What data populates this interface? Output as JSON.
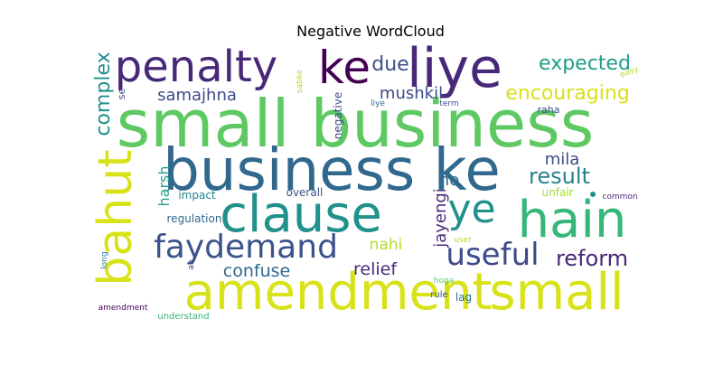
{
  "chart_data": {
    "type": "wordcloud",
    "title": "Negative WordCloud",
    "colormap": "viridis",
    "background": "#ffffff",
    "words": [
      {
        "text": "small business",
        "weight": 1.0,
        "color": "#5ec962"
      },
      {
        "text": "business ke",
        "weight": 0.88,
        "color": "#31688e"
      },
      {
        "text": "clause",
        "weight": 0.8,
        "color": "#21918c"
      },
      {
        "text": "amendment",
        "weight": 0.78,
        "color": "#d8e219"
      },
      {
        "text": "liye",
        "weight": 0.74,
        "color": "#482878"
      },
      {
        "text": "small",
        "weight": 0.72,
        "color": "#d8e219"
      },
      {
        "text": "hain",
        "weight": 0.72,
        "color": "#35b779"
      },
      {
        "text": "penalty",
        "weight": 0.64,
        "color": "#482878"
      },
      {
        "text": "ke",
        "weight": 0.64,
        "color": "#440154"
      },
      {
        "text": "bahut",
        "weight": 0.62,
        "color": "#d8e219"
      },
      {
        "text": "ye",
        "weight": 0.6,
        "color": "#21918c"
      },
      {
        "text": "faydemand",
        "weight": 0.5,
        "color": "#3b528b"
      },
      {
        "text": "useful",
        "weight": 0.46,
        "color": "#3e4a89"
      },
      {
        "text": "result",
        "weight": 0.34,
        "color": "#26828e"
      },
      {
        "text": "reform",
        "weight": 0.34,
        "color": "#482878"
      },
      {
        "text": "expected",
        "weight": 0.32,
        "color": "#1f9e89"
      },
      {
        "text": "encouraging",
        "weight": 0.3,
        "color": "#d8e219"
      },
      {
        "text": "complex",
        "weight": 0.3,
        "color": "#21918c"
      },
      {
        "text": "due",
        "weight": 0.28,
        "color": "#3b528b"
      },
      {
        "text": "confuse",
        "weight": 0.27,
        "color": "#31688e"
      },
      {
        "text": "relief",
        "weight": 0.26,
        "color": "#482878"
      },
      {
        "text": "samajhna",
        "weight": 0.25,
        "color": "#3e4a89"
      },
      {
        "text": "mushkil",
        "weight": 0.24,
        "color": "#3e4a89"
      },
      {
        "text": "jayengi",
        "weight": 0.24,
        "color": "#472d7b"
      },
      {
        "text": "ho",
        "weight": 0.24,
        "color": "#31688e"
      },
      {
        "text": "mila",
        "weight": 0.22,
        "color": "#3e4a89"
      },
      {
        "text": "nahi",
        "weight": 0.22,
        "color": "#b5de2b"
      },
      {
        "text": "harsh",
        "weight": 0.2,
        "color": "#1f9e89"
      },
      {
        "text": "impact",
        "weight": 0.16,
        "color": "#26828e"
      },
      {
        "text": "overall",
        "weight": 0.16,
        "color": "#3b528b"
      },
      {
        "text": "regulation",
        "weight": 0.16,
        "color": "#31688e"
      },
      {
        "text": "unfair",
        "weight": 0.16,
        "color": "#a6db35"
      },
      {
        "text": "raha",
        "weight": 0.14,
        "color": "#3e4a89"
      },
      {
        "text": "negative",
        "weight": 0.14,
        "color": "#3e4a89"
      },
      {
        "text": "se",
        "weight": 0.13,
        "color": "#3e4a89"
      },
      {
        "text": "common",
        "weight": 0.1,
        "color": "#472d7b"
      },
      {
        "text": "easy",
        "weight": 0.1,
        "color": "#b5de2b"
      },
      {
        "text": "sabke",
        "weight": 0.09,
        "color": "#b5de2b"
      },
      {
        "text": "liye",
        "weight": 0.09,
        "color": "#31688e"
      },
      {
        "text": "term",
        "weight": 0.09,
        "color": "#3e4a89"
      },
      {
        "text": "user",
        "weight": 0.09,
        "color": "#b5de2b"
      },
      {
        "text": "long",
        "weight": 0.09,
        "color": "#2a788e"
      },
      {
        "text": "ab",
        "weight": 0.09,
        "color": "#3e4a89"
      },
      {
        "text": "hoga",
        "weight": 0.09,
        "color": "#5ec962"
      },
      {
        "text": "rule",
        "weight": 0.1,
        "color": "#3e4a89"
      },
      {
        "text": "lag",
        "weight": 0.12,
        "color": "#2a788e"
      },
      {
        "text": "amendment",
        "weight": 0.09,
        "color": "#440154"
      },
      {
        "text": "understand",
        "weight": 0.09,
        "color": "#35b779"
      }
    ]
  }
}
